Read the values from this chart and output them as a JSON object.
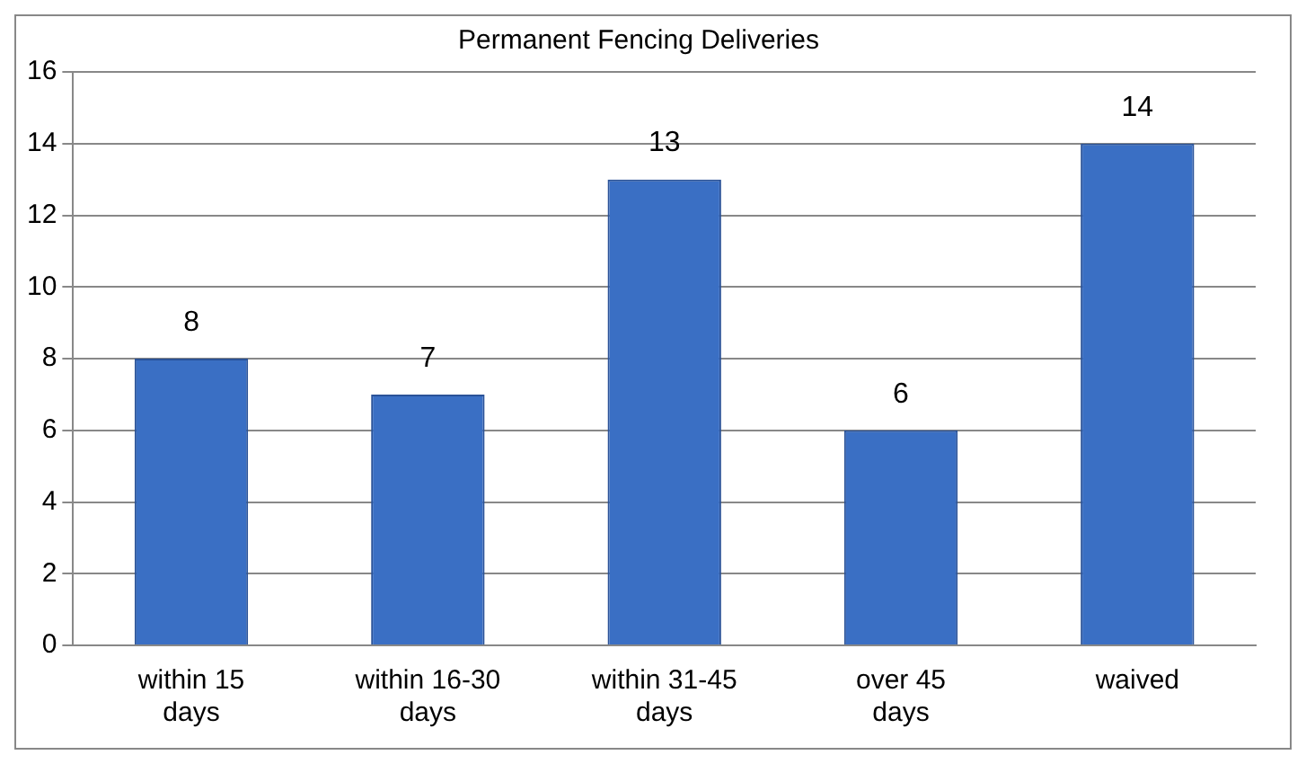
{
  "chart_data": {
    "type": "bar",
    "title": "Permanent Fencing Deliveries",
    "categories": [
      "within 15 days",
      "within 16-30 days",
      "within 31-45 days",
      "over 45 days",
      "waived"
    ],
    "values": [
      8,
      7,
      13,
      6,
      14
    ],
    "color": "#3a6fc4",
    "ylim": [
      0,
      16
    ],
    "yticks": [
      0,
      2,
      4,
      6,
      8,
      10,
      12,
      14,
      16
    ],
    "grid": "y",
    "legend": false,
    "data_labels": true
  }
}
